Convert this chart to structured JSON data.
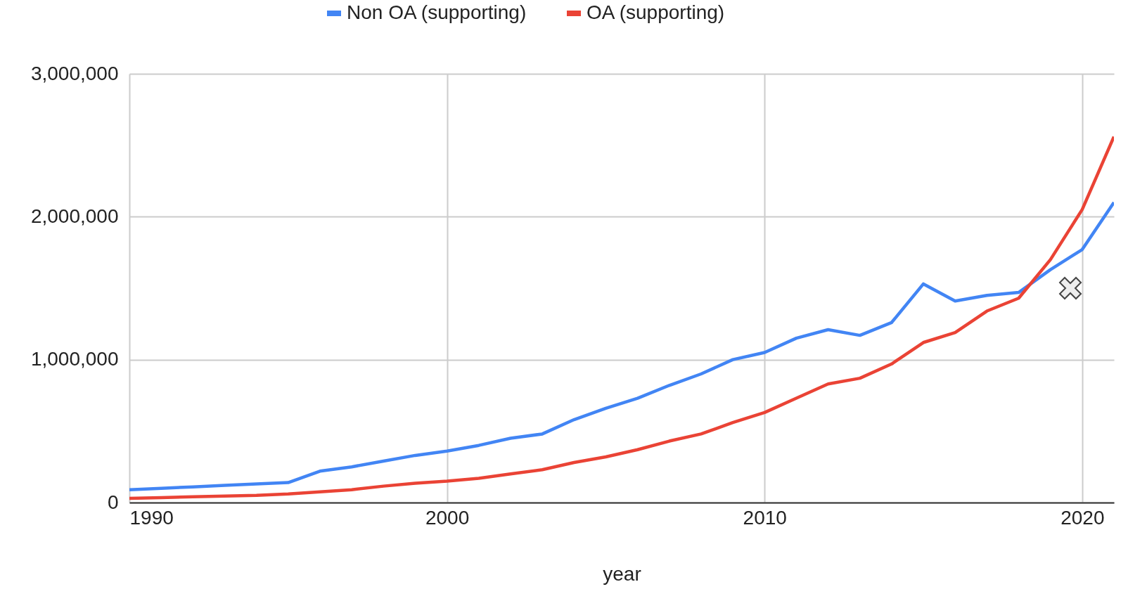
{
  "chart_data": {
    "type": "line",
    "xlabel": "year",
    "legend": "top",
    "grid": true,
    "x": [
      1990,
      1991,
      1992,
      1993,
      1994,
      1995,
      1996,
      1997,
      1998,
      1999,
      2000,
      2001,
      2002,
      2003,
      2004,
      2005,
      2006,
      2007,
      2008,
      2009,
      2010,
      2011,
      2012,
      2013,
      2014,
      2015,
      2016,
      2017,
      2018,
      2019,
      2020,
      2021
    ],
    "xlim": [
      1990,
      2021
    ],
    "xticks": [
      1990,
      2000,
      2010,
      2020
    ],
    "ylim": [
      0,
      3000000
    ],
    "yticks": [
      {
        "value": 0,
        "label": "0"
      },
      {
        "value": 1000000,
        "label": "1,000,000"
      },
      {
        "value": 2000000,
        "label": "2,000,000"
      },
      {
        "value": 3000000,
        "label": "3,000,000"
      }
    ],
    "series": [
      {
        "name": "Non OA (supporting)",
        "color": "#4285f4",
        "values": [
          90000,
          100000,
          110000,
          120000,
          130000,
          140000,
          220000,
          250000,
          290000,
          330000,
          360000,
          400000,
          450000,
          480000,
          580000,
          660000,
          730000,
          820000,
          900000,
          1000000,
          1050000,
          1150000,
          1210000,
          1170000,
          1260000,
          1530000,
          1410000,
          1450000,
          1470000,
          1630000,
          1770000,
          2100000
        ]
      },
      {
        "name": "OA (supporting)",
        "color": "#ea4335",
        "values": [
          30000,
          35000,
          40000,
          45000,
          50000,
          60000,
          75000,
          90000,
          115000,
          135000,
          150000,
          170000,
          200000,
          230000,
          280000,
          320000,
          370000,
          430000,
          480000,
          560000,
          630000,
          730000,
          830000,
          870000,
          970000,
          1120000,
          1190000,
          1340000,
          1430000,
          1700000,
          2050000,
          2560000
        ]
      }
    ]
  }
}
